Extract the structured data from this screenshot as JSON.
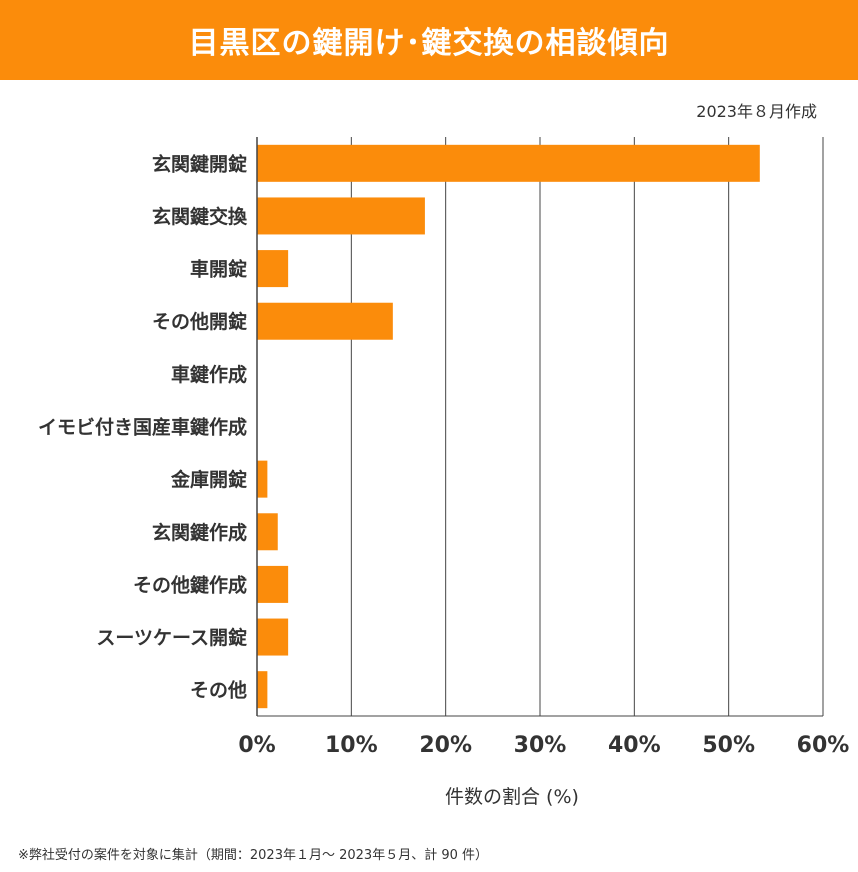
{
  "header": {
    "title": "目黒区の鍵開け･鍵交換の相談傾向"
  },
  "date_note": "2023年８月作成",
  "footnote": "※弊社受付の案件を対象に集計（期間：2023年１月～ 2023年５月、計 90 件）",
  "colors": {
    "accent": "#fb8c0b",
    "bar": "#fb8c0b",
    "grid": "#444444",
    "text": "#333333"
  },
  "chart_data": {
    "type": "bar",
    "orientation": "horizontal",
    "title": "目黒区の鍵開け･鍵交換の相談傾向",
    "xlabel": "件数の割合 (%)",
    "ylabel": "",
    "xlim": [
      0,
      60
    ],
    "x_ticks": [
      "0%",
      "10%",
      "20%",
      "30%",
      "40%",
      "50%",
      "60%"
    ],
    "grid": true,
    "categories": [
      "玄関鍵開錠",
      "玄関鍵交換",
      "車開錠",
      "その他開錠",
      "車鍵作成",
      "イモビ付き国産車鍵作成",
      "金庫開錠",
      "玄関鍵作成",
      "その他鍵作成",
      "スーツケース開錠",
      "その他"
    ],
    "values": [
      53.3,
      17.8,
      3.3,
      14.4,
      0,
      0,
      1.1,
      2.2,
      3.3,
      3.3,
      1.1
    ]
  }
}
